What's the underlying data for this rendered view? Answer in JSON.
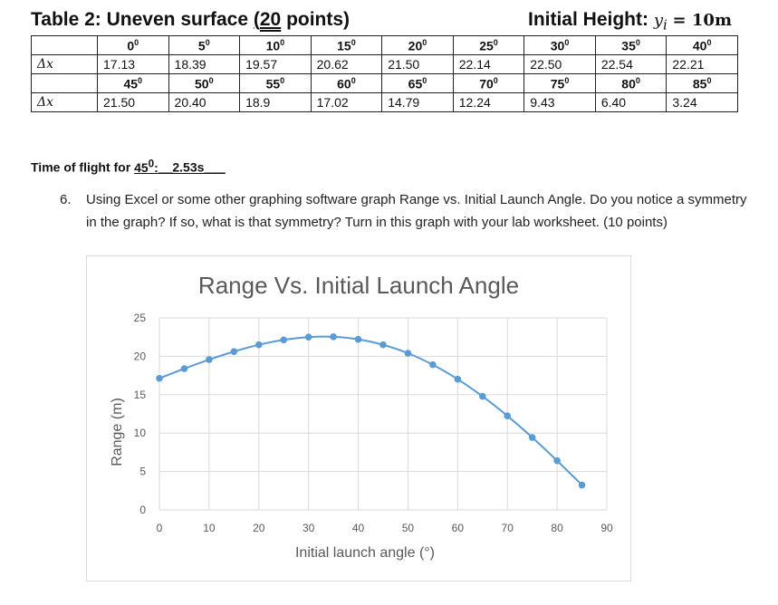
{
  "header": {
    "title_prefix": "Table 2: Uneven surface ",
    "title_open": "(",
    "title_points": "20",
    "title_suffix": " points)",
    "initial_height_label": "Initial Height:",
    "initial_height_var": "y",
    "initial_height_sub": "i",
    "initial_height_value": "= 10m"
  },
  "table": {
    "row_label": "Δx",
    "rows": [
      {
        "angles": [
          "0",
          "5",
          "10",
          "15",
          "20",
          "25",
          "30",
          "35",
          "40"
        ],
        "values": [
          "17.13",
          "18.39",
          "19.57",
          "20.62",
          "21.50",
          "22.14",
          "22.50",
          "22.54",
          "22.21"
        ]
      },
      {
        "angles": [
          "45",
          "50",
          "55",
          "60",
          "65",
          "70",
          "75",
          "80",
          "85"
        ],
        "values": [
          "21.50",
          "20.40",
          "18.9",
          "17.02",
          "14.79",
          "12.24",
          "9.43",
          "6.40",
          "3.24"
        ]
      }
    ],
    "degree_mark": "0"
  },
  "time_of_flight": {
    "label_prefix": "Time of flight for ",
    "angle": "45",
    "degree_mark": "0",
    "colon": ":",
    "answer": "__2.53s___"
  },
  "question": {
    "number": "6.",
    "text": "Using Excel or some other graphing software graph Range vs. Initial Launch Angle. Do you notice a symmetry in the graph? If so, what is that symmetry? Turn in this graph with your lab worksheet. (10 points)"
  },
  "chart_data": {
    "type": "scatter",
    "title": "Range Vs. Initial Launch Angle",
    "xlabel": "Initial launch angle (°)",
    "ylabel": "Range (m)",
    "xlim": [
      0,
      90
    ],
    "ylim": [
      0,
      25
    ],
    "xticks": [
      0,
      10,
      20,
      30,
      40,
      50,
      60,
      70,
      80,
      90
    ],
    "yticks": [
      0,
      5,
      10,
      15,
      20,
      25
    ],
    "grid": true,
    "smooth_line": true,
    "color": "#5b9bd5",
    "series": [
      {
        "x": [
          0,
          5,
          10,
          15,
          20,
          25,
          30,
          35,
          40,
          45,
          50,
          55,
          60,
          65,
          70,
          75,
          80,
          85
        ],
        "values": [
          17.13,
          18.39,
          19.57,
          20.62,
          21.5,
          22.14,
          22.5,
          22.54,
          22.21,
          21.5,
          20.4,
          18.9,
          17.02,
          14.79,
          12.24,
          9.43,
          6.4,
          3.24
        ]
      }
    ]
  }
}
